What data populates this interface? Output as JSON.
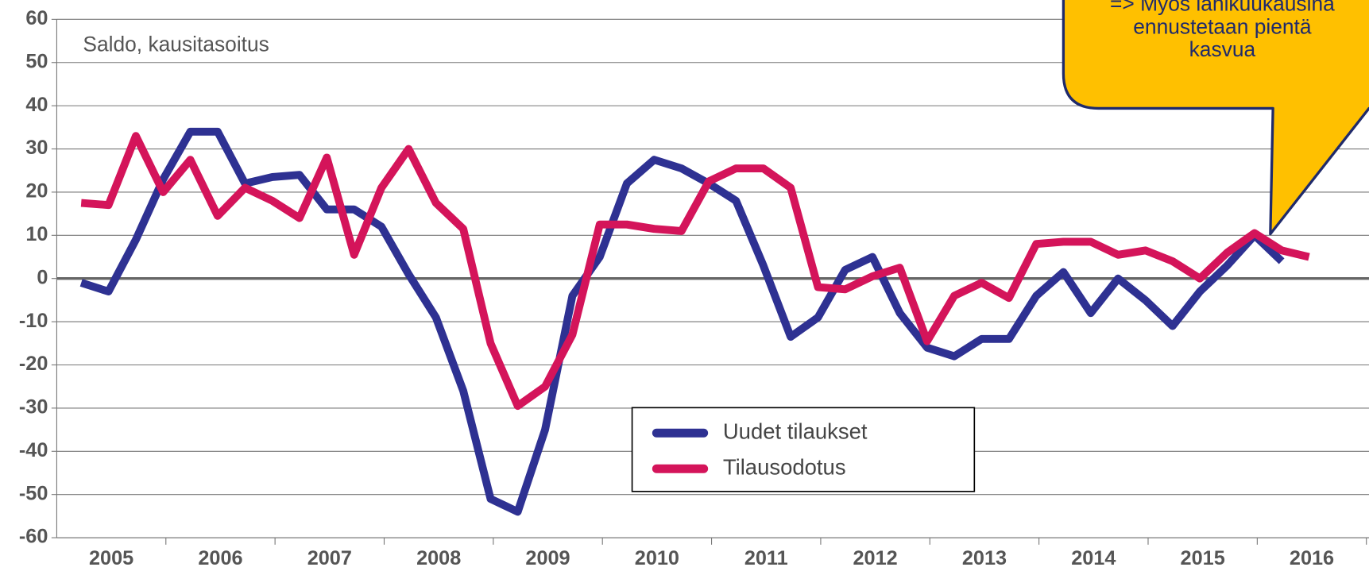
{
  "chart_data": {
    "type": "line",
    "subtitle": "Saldo, kausitasoitus",
    "categories": [
      "2005",
      "2006",
      "2007",
      "2008",
      "2009",
      "2010",
      "2011",
      "2012",
      "2013",
      "2014",
      "2015",
      "2016"
    ],
    "series": [
      {
        "name": "Uudet tilaukset",
        "color": "#2e3192",
        "values": [
          [
            -1,
            -3,
            9,
            23
          ],
          [
            34,
            34,
            22,
            23.5
          ],
          [
            24,
            16,
            16,
            12
          ],
          [
            1,
            -9,
            -26,
            -51
          ],
          [
            -54,
            -35,
            -4,
            5
          ],
          [
            22,
            27.5,
            25.5,
            22
          ],
          [
            18,
            3,
            -13.5,
            -9
          ],
          [
            2,
            5,
            -8,
            -16
          ],
          [
            -18,
            -14,
            -14,
            -4
          ],
          [
            1.5,
            -8,
            0,
            -5
          ],
          [
            -11,
            -3,
            3,
            10
          ],
          [
            4,
            null,
            null,
            null
          ]
        ]
      },
      {
        "name": "Tilausodotus",
        "color": "#d4145a",
        "values": [
          [
            17.5,
            17,
            33,
            20
          ],
          [
            27.5,
            14.5,
            21,
            18
          ],
          [
            14,
            28,
            5.5,
            21
          ],
          [
            30,
            17.5,
            11.5,
            -15
          ],
          [
            -29.5,
            -25,
            -13,
            12.5
          ],
          [
            12.5,
            11.5,
            11,
            22.5
          ],
          [
            25.5,
            25.5,
            21,
            -2
          ],
          [
            -2.5,
            0.5,
            2.5,
            -14.5
          ],
          [
            -4,
            -1,
            -4.5,
            8
          ],
          [
            8.5,
            8.5,
            5.5,
            6.5
          ],
          [
            4,
            0,
            6,
            10.5
          ],
          [
            6.5,
            5,
            null,
            null
          ]
        ]
      }
    ],
    "ylim": [
      -60,
      60
    ],
    "yticks": [
      -60,
      -50,
      -40,
      -30,
      -20,
      -10,
      0,
      10,
      20,
      30,
      40,
      50,
      60
    ],
    "grid": true,
    "annotation": [
      "=> Myös lähikuukausina",
      "ennustetaan pientä",
      "kasvua"
    ]
  }
}
